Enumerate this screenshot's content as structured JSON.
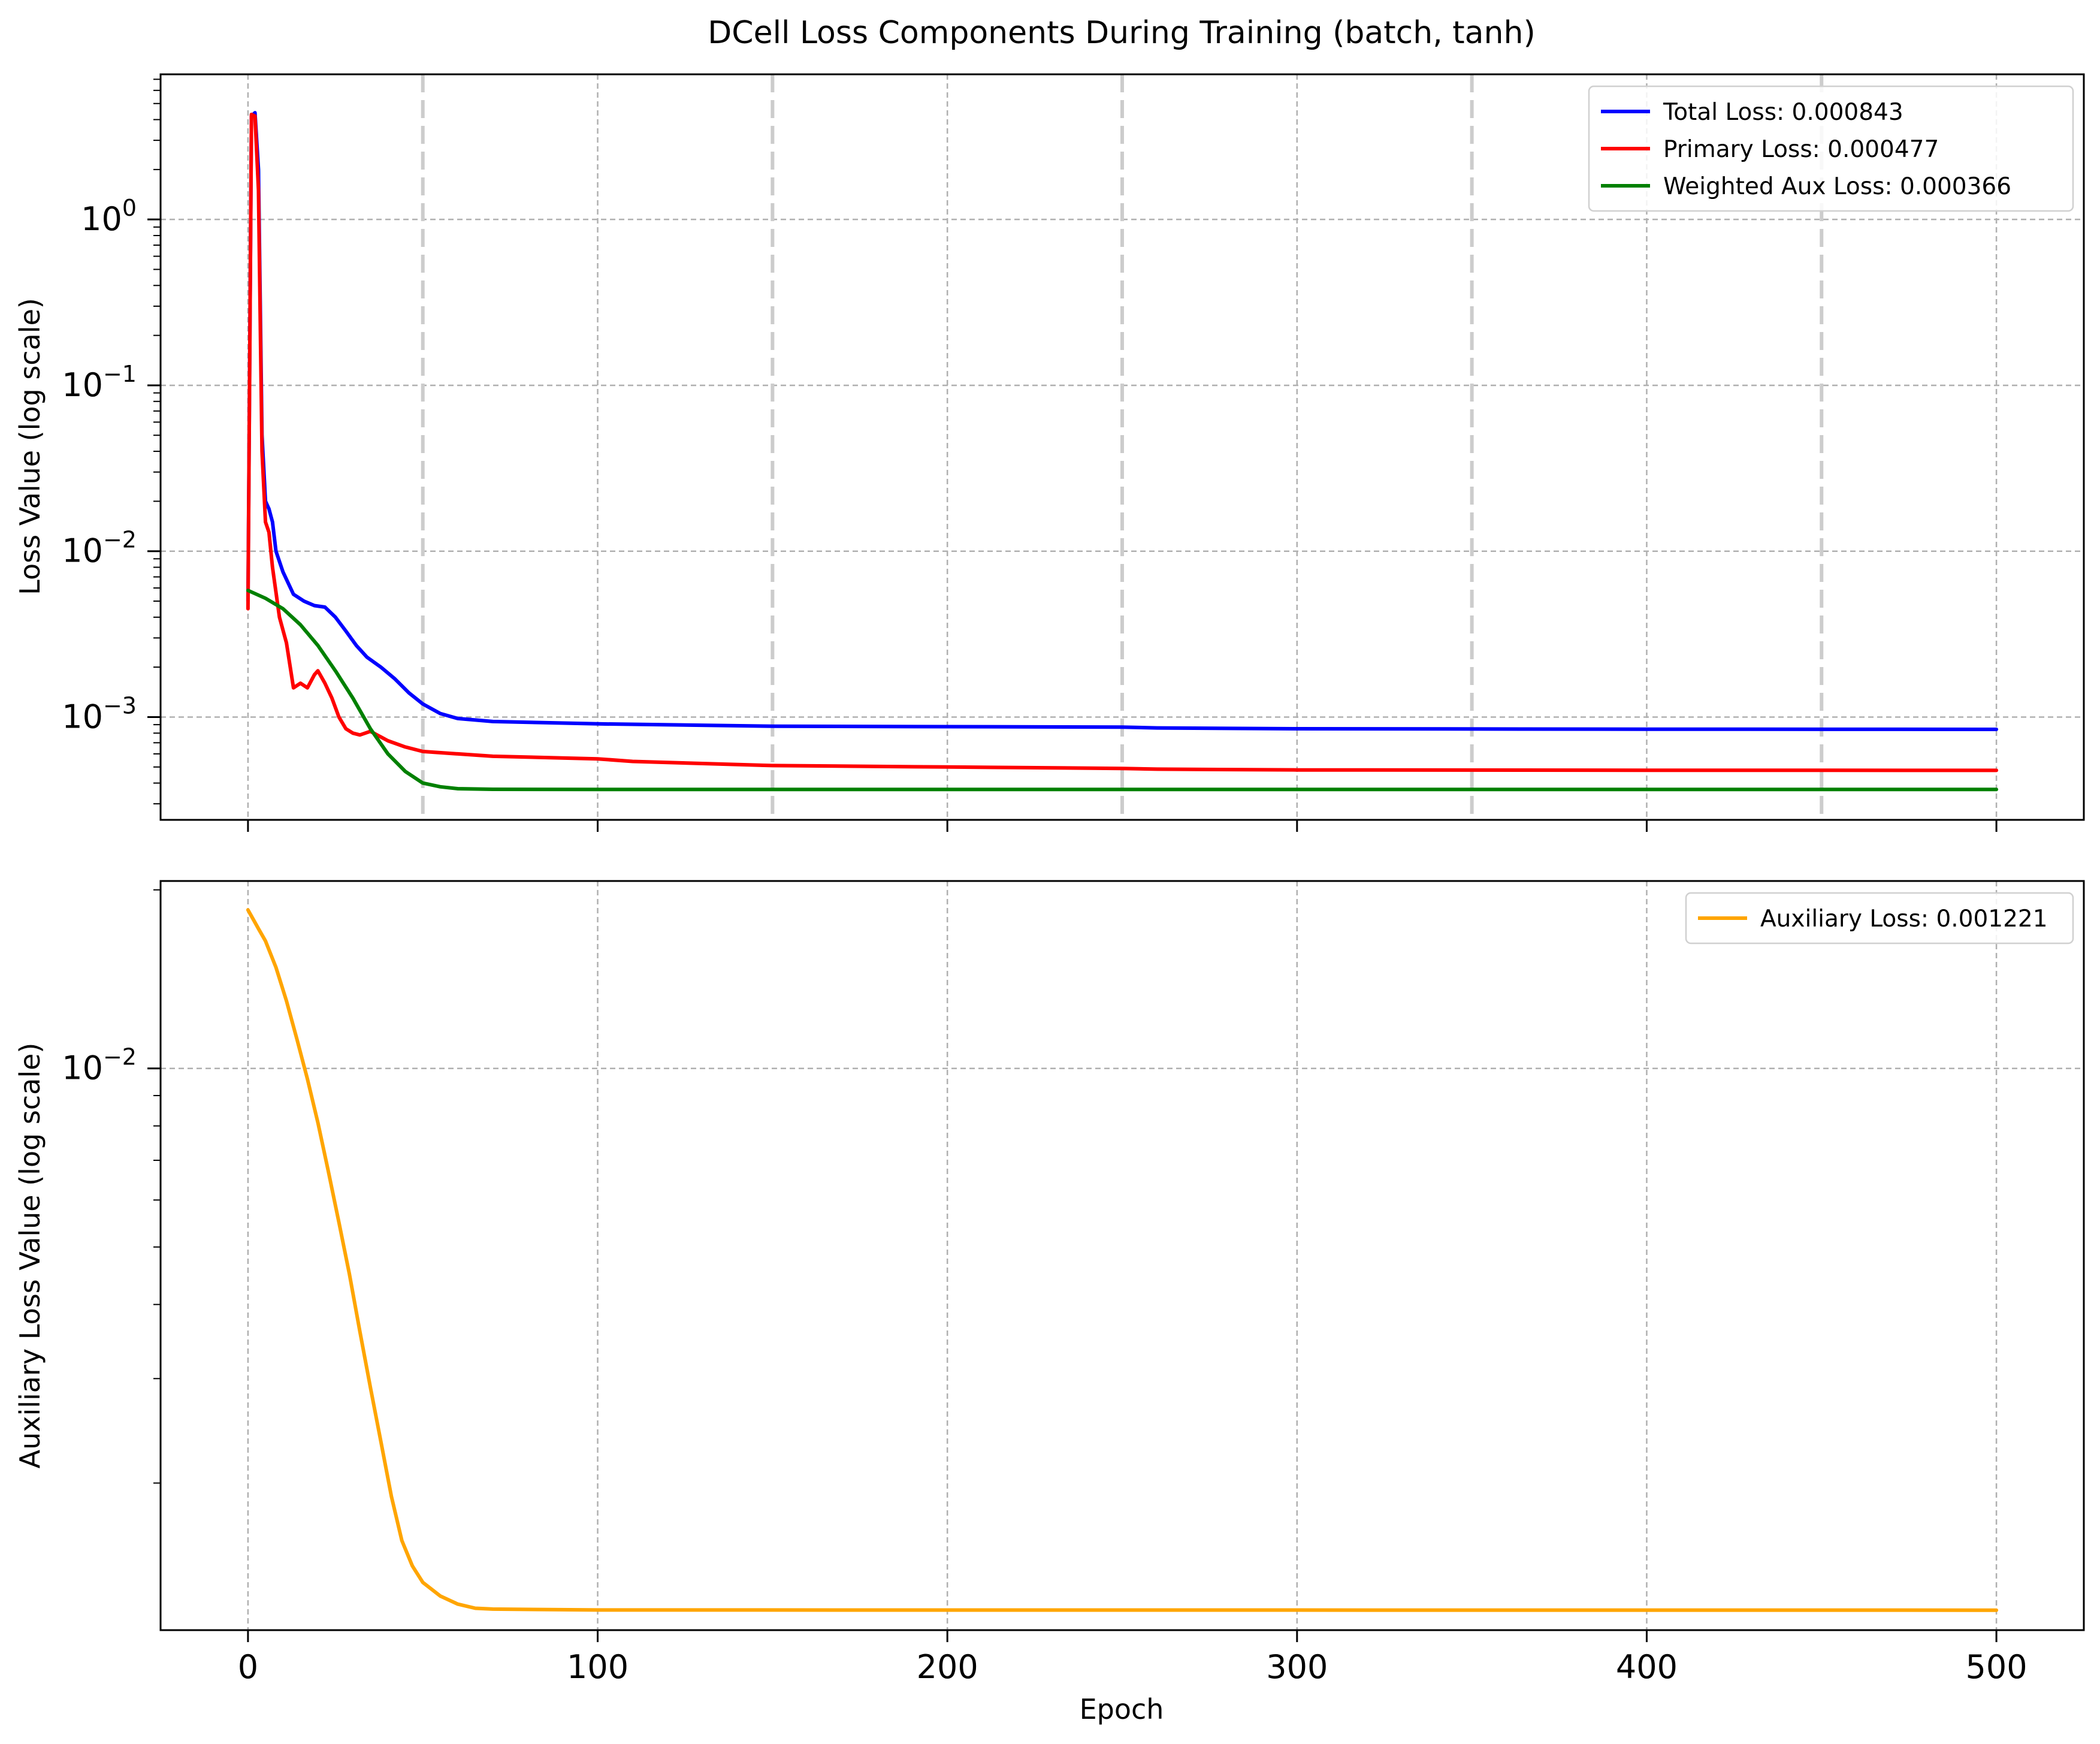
{
  "chart_data": [
    {
      "type": "line",
      "title": "DCell Loss Components During Training (batch, tanh)",
      "xlabel": "",
      "ylabel": "Loss Value (log scale)",
      "yscale": "log",
      "xlim": [
        -25,
        525
      ],
      "ylim": [
        0.00024,
        7.5
      ],
      "xticks": [
        0,
        100,
        200,
        300,
        400,
        500
      ],
      "xtick_labels": [
        "",
        "",
        "",
        "",
        "",
        ""
      ],
      "yticks": [
        {
          "value": 0.001,
          "base": "10",
          "exp": "−3"
        },
        {
          "value": 0.01,
          "base": "10",
          "exp": "−2"
        },
        {
          "value": 0.1,
          "base": "10",
          "exp": "−1"
        },
        {
          "value": 1,
          "base": "10",
          "exp": "0"
        }
      ],
      "grid": true,
      "vertical_dashed_lines": [
        50,
        150,
        250,
        350,
        450
      ],
      "legend_position": "top-right",
      "series": [
        {
          "name": "Total Loss: 0.000843",
          "color": "#0000ff",
          "points": [
            [
              0,
              0.005
            ],
            [
              1,
              4.2
            ],
            [
              2,
              4.4
            ],
            [
              3,
              2.0
            ],
            [
              4,
              0.05
            ],
            [
              5,
              0.02
            ],
            [
              6,
              0.018
            ],
            [
              7,
              0.015
            ],
            [
              8,
              0.01
            ],
            [
              10,
              0.0075
            ],
            [
              13,
              0.0055
            ],
            [
              16,
              0.005
            ],
            [
              19,
              0.0047
            ],
            [
              22,
              0.0046
            ],
            [
              25,
              0.004
            ],
            [
              28,
              0.0033
            ],
            [
              31,
              0.0027
            ],
            [
              34,
              0.0023
            ],
            [
              38,
              0.002
            ],
            [
              42,
              0.0017
            ],
            [
              46,
              0.0014
            ],
            [
              50,
              0.0012
            ],
            [
              55,
              0.00105
            ],
            [
              60,
              0.00098
            ],
            [
              70,
              0.00094
            ],
            [
              100,
              0.00091
            ],
            [
              150,
              0.00088
            ],
            [
              200,
              0.000875
            ],
            [
              250,
              0.00087
            ],
            [
              260,
              0.00086
            ],
            [
              300,
              0.00085
            ],
            [
              400,
              0.000845
            ],
            [
              500,
              0.000843
            ]
          ]
        },
        {
          "name": "Primary Loss: 0.000477",
          "color": "#ff0000",
          "points": [
            [
              0,
              0.0045
            ],
            [
              1,
              4.3
            ],
            [
              2,
              4.2
            ],
            [
              3,
              1.5
            ],
            [
              4,
              0.04
            ],
            [
              5,
              0.015
            ],
            [
              6,
              0.013
            ],
            [
              7,
              0.008
            ],
            [
              9,
              0.004
            ],
            [
              11,
              0.0028
            ],
            [
              13,
              0.0015
            ],
            [
              15,
              0.0016
            ],
            [
              17,
              0.0015
            ],
            [
              19,
              0.0018
            ],
            [
              20,
              0.0019
            ],
            [
              22,
              0.0016
            ],
            [
              24,
              0.0013
            ],
            [
              26,
              0.001
            ],
            [
              28,
              0.00085
            ],
            [
              30,
              0.0008
            ],
            [
              32,
              0.00078
            ],
            [
              35,
              0.00082
            ],
            [
              40,
              0.00072
            ],
            [
              45,
              0.00066
            ],
            [
              50,
              0.00062
            ],
            [
              60,
              0.0006
            ],
            [
              70,
              0.00058
            ],
            [
              100,
              0.00056
            ],
            [
              110,
              0.00054
            ],
            [
              150,
              0.00051
            ],
            [
              200,
              0.0005
            ],
            [
              250,
              0.00049
            ],
            [
              260,
              0.000485
            ],
            [
              300,
              0.00048
            ],
            [
              400,
              0.000478
            ],
            [
              500,
              0.000477
            ]
          ]
        },
        {
          "name": "Weighted Aux Loss: 0.000366",
          "color": "#008000",
          "points": [
            [
              0,
              0.0058
            ],
            [
              5,
              0.0052
            ],
            [
              10,
              0.0045
            ],
            [
              15,
              0.0036
            ],
            [
              20,
              0.0027
            ],
            [
              25,
              0.0019
            ],
            [
              30,
              0.0013
            ],
            [
              35,
              0.00085
            ],
            [
              40,
              0.0006
            ],
            [
              45,
              0.00047
            ],
            [
              50,
              0.0004
            ],
            [
              55,
              0.00038
            ],
            [
              60,
              0.00037
            ],
            [
              70,
              0.000367
            ],
            [
              100,
              0.000366
            ],
            [
              500,
              0.000366
            ]
          ]
        }
      ]
    },
    {
      "type": "line",
      "title": "",
      "xlabel": "Epoch",
      "ylabel": "Auxiliary Loss Value (log scale)",
      "yscale": "log",
      "xlim": [
        -25,
        525
      ],
      "ylim": [
        0.00113,
        0.0207
      ],
      "xticks": [
        0,
        100,
        200,
        300,
        400,
        500
      ],
      "xtick_labels": [
        "0",
        "100",
        "200",
        "300",
        "400",
        "500"
      ],
      "yticks": [
        {
          "value": 0.01,
          "base": "10",
          "exp": "−2"
        }
      ],
      "grid": true,
      "legend_position": "top-right",
      "series": [
        {
          "name": "Auxiliary Loss: 0.001221",
          "color": "#ffa500",
          "points": [
            [
              0,
              0.0185
            ],
            [
              3,
              0.0172
            ],
            [
              5,
              0.0164
            ],
            [
              8,
              0.0148
            ],
            [
              11,
              0.013
            ],
            [
              14,
              0.0112
            ],
            [
              17,
              0.0096
            ],
            [
              20,
              0.0081
            ],
            [
              23,
              0.0067
            ],
            [
              26,
              0.0055
            ],
            [
              29,
              0.0045
            ],
            [
              32,
              0.0036
            ],
            [
              35,
              0.0029
            ],
            [
              38,
              0.00235
            ],
            [
              41,
              0.0019
            ],
            [
              44,
              0.0016
            ],
            [
              47,
              0.00145
            ],
            [
              50,
              0.00136
            ],
            [
              55,
              0.00129
            ],
            [
              60,
              0.00125
            ],
            [
              65,
              0.00123
            ],
            [
              70,
              0.001226
            ],
            [
              100,
              0.001222
            ],
            [
              500,
              0.001221
            ]
          ]
        }
      ]
    }
  ]
}
